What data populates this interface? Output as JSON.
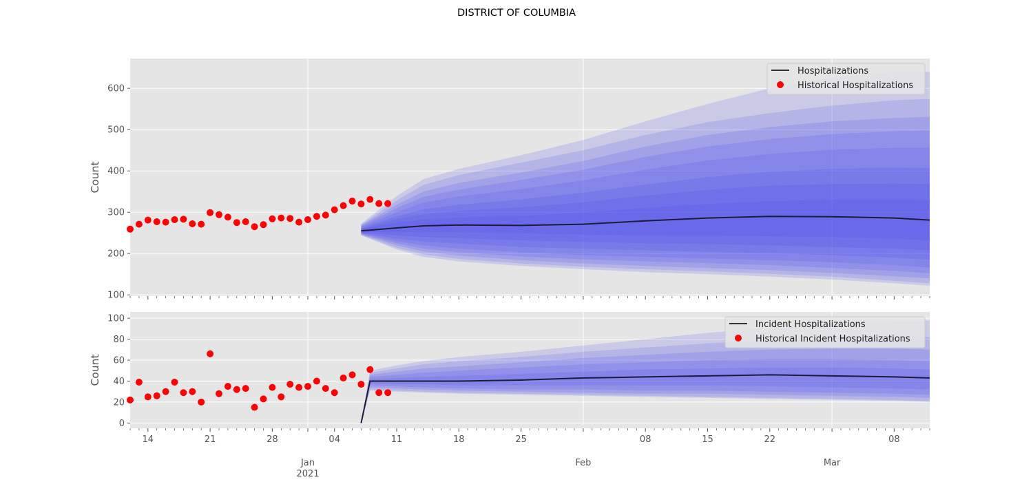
{
  "figure_title": "DISTRICT OF COLUMBIA",
  "colors": {
    "panel_bg": "#e5e5e5",
    "grid": "#ffffff",
    "historical": "#ff0000",
    "median_line": "#1c1c3a",
    "band": "#4a4af0",
    "axis_text": "#555555"
  },
  "chart_data": [
    {
      "type": "line",
      "panel": "top",
      "ylabel": "Count",
      "ylim": [
        97,
        672
      ],
      "yticks": [
        100,
        200,
        300,
        400,
        500,
        600
      ],
      "grid": true,
      "legend_position": "top-right",
      "x_start": "2020-12-12",
      "x_end": "2021-03-12",
      "legend": [
        "Hospitalizations",
        "Historical Hospitalizations"
      ],
      "historical": {
        "name": "Historical Hospitalizations",
        "start": "2020-12-12",
        "values": [
          259,
          271,
          281,
          277,
          276,
          282,
          283,
          272,
          271,
          299,
          294,
          288,
          275,
          277,
          265,
          270,
          284,
          286,
          285,
          276,
          282,
          290,
          293,
          306,
          316,
          327,
          320,
          331,
          321,
          321
        ]
      },
      "forecast": {
        "name": "Hospitalizations",
        "dates": [
          "2021-01-07",
          "2021-01-11",
          "2021-01-14",
          "2021-01-18",
          "2021-01-25",
          "2021-02-01",
          "2021-02-08",
          "2021-02-15",
          "2021-02-22",
          "2021-03-01",
          "2021-03-08",
          "2021-03-12"
        ],
        "median": [
          255,
          262,
          267,
          269,
          268,
          271,
          279,
          286,
          290,
          289,
          286,
          281
        ],
        "upper_quantiles": [
          [
            258,
            275,
            282,
            287,
            291,
            299,
            310,
            320,
            327,
            330,
            330,
            329
          ],
          [
            260,
            283,
            295,
            303,
            312,
            324,
            340,
            354,
            364,
            368,
            369,
            368
          ],
          [
            262,
            290,
            307,
            318,
            331,
            347,
            367,
            385,
            398,
            405,
            408,
            406
          ],
          [
            264,
            300,
            323,
            338,
            356,
            377,
            403,
            425,
            441,
            451,
            456,
            456
          ],
          [
            266,
            310,
            337,
            355,
            378,
            403,
            434,
            459,
            477,
            489,
            496,
            498
          ],
          [
            268,
            318,
            350,
            371,
            396,
            424,
            459,
            487,
            506,
            520,
            528,
            531
          ],
          [
            270,
            328,
            366,
            390,
            420,
            450,
            487,
            518,
            540,
            558,
            571,
            574
          ],
          [
            272,
            339,
            380,
            405,
            438,
            475,
            520,
            562,
            600,
            625,
            640,
            640
          ]
        ],
        "lower_quantiles": [
          [
            252,
            252,
            252,
            252,
            249,
            246,
            245,
            244,
            242,
            240,
            236,
            232
          ],
          [
            250,
            244,
            240,
            237,
            232,
            228,
            225,
            223,
            220,
            216,
            212,
            208
          ],
          [
            249,
            236,
            229,
            224,
            216,
            212,
            208,
            204,
            201,
            196,
            190,
            185
          ],
          [
            248,
            230,
            220,
            212,
            203,
            196,
            192,
            188,
            184,
            179,
            172,
            166
          ],
          [
            247,
            225,
            212,
            203,
            193,
            186,
            181,
            177,
            172,
            165,
            158,
            152
          ],
          [
            246,
            220,
            205,
            195,
            184,
            176,
            170,
            165,
            160,
            153,
            145,
            140
          ],
          [
            245,
            214,
            198,
            187,
            176,
            168,
            162,
            157,
            151,
            144,
            134,
            128
          ],
          [
            244,
            210,
            192,
            181,
            170,
            162,
            155,
            150,
            144,
            137,
            128,
            122
          ]
        ]
      }
    },
    {
      "type": "line",
      "panel": "bottom",
      "ylabel": "Count",
      "ylim": [
        -5,
        106
      ],
      "yticks": [
        0,
        20,
        40,
        60,
        80,
        100
      ],
      "grid": true,
      "legend_position": "top-right",
      "x_start": "2020-12-12",
      "x_end": "2021-03-12",
      "legend": [
        "Incident Hospitalizations",
        "Historical Incident Hospitalizations"
      ],
      "historical": {
        "name": "Historical Incident Hospitalizations",
        "start": "2020-12-12",
        "values": [
          22,
          39,
          25,
          26,
          30,
          39,
          29,
          30,
          20,
          66,
          28,
          35,
          32,
          33,
          15,
          23,
          34,
          25,
          37,
          34,
          35,
          40,
          33,
          29,
          43,
          46,
          37,
          51,
          29,
          29
        ]
      },
      "forecast": {
        "name": "Incident Hospitalizations",
        "dates": [
          "2021-01-07",
          "2021-01-08",
          "2021-01-11",
          "2021-01-14",
          "2021-01-18",
          "2021-01-25",
          "2021-02-01",
          "2021-02-08",
          "2021-02-15",
          "2021-02-22",
          "2021-03-01",
          "2021-03-08",
          "2021-03-12"
        ],
        "median": [
          0,
          40,
          40,
          40,
          40,
          41,
          43,
          44,
          45,
          46,
          45,
          44,
          43
        ],
        "upper_quantiles": [
          [
            0,
            42,
            43,
            44,
            45,
            47,
            49,
            51,
            52,
            53,
            53,
            52,
            51
          ],
          [
            0,
            44,
            46,
            48,
            50,
            53,
            56,
            58,
            60,
            61,
            61,
            60,
            59
          ],
          [
            0,
            46,
            49,
            52,
            54,
            58,
            62,
            65,
            68,
            70,
            71,
            71,
            70
          ],
          [
            0,
            48,
            52,
            56,
            59,
            63,
            68,
            72,
            76,
            79,
            81,
            82,
            82
          ],
          [
            0,
            50,
            55,
            59,
            63,
            68,
            74,
            80,
            86,
            91,
            94,
            97,
            98
          ]
        ],
        "lower_quantiles": [
          [
            0,
            38,
            37,
            37,
            36,
            36,
            36,
            36,
            36,
            35,
            34,
            33,
            32
          ],
          [
            0,
            36,
            35,
            34,
            33,
            32,
            32,
            31,
            31,
            30,
            29,
            28,
            27
          ],
          [
            0,
            34,
            33,
            32,
            31,
            30,
            29,
            28,
            28,
            27,
            26,
            25,
            24
          ],
          [
            0,
            32,
            31,
            30,
            29,
            28,
            27,
            26,
            25,
            24,
            23,
            22,
            21
          ],
          [
            0,
            31,
            30,
            29,
            28,
            27,
            26,
            25,
            24,
            23,
            22,
            21,
            20
          ]
        ]
      }
    }
  ],
  "x_axis": {
    "day_labels": [
      {
        "date": "2020-12-14",
        "label": "14"
      },
      {
        "date": "2020-12-21",
        "label": "21"
      },
      {
        "date": "2020-12-28",
        "label": "28"
      },
      {
        "date": "2021-01-04",
        "label": "04"
      },
      {
        "date": "2021-01-11",
        "label": "11"
      },
      {
        "date": "2021-01-18",
        "label": "18"
      },
      {
        "date": "2021-01-25",
        "label": "25"
      },
      {
        "date": "2021-02-08",
        "label": "08"
      },
      {
        "date": "2021-02-15",
        "label": "15"
      },
      {
        "date": "2021-02-22",
        "label": "22"
      },
      {
        "date": "2021-03-08",
        "label": "08"
      }
    ],
    "month_labels": [
      {
        "date": "2021-01-01",
        "label": "Jan",
        "sublabel": "2021"
      },
      {
        "date": "2021-02-01",
        "label": "Feb",
        "sublabel": ""
      },
      {
        "date": "2021-03-01",
        "label": "Mar",
        "sublabel": ""
      }
    ]
  }
}
